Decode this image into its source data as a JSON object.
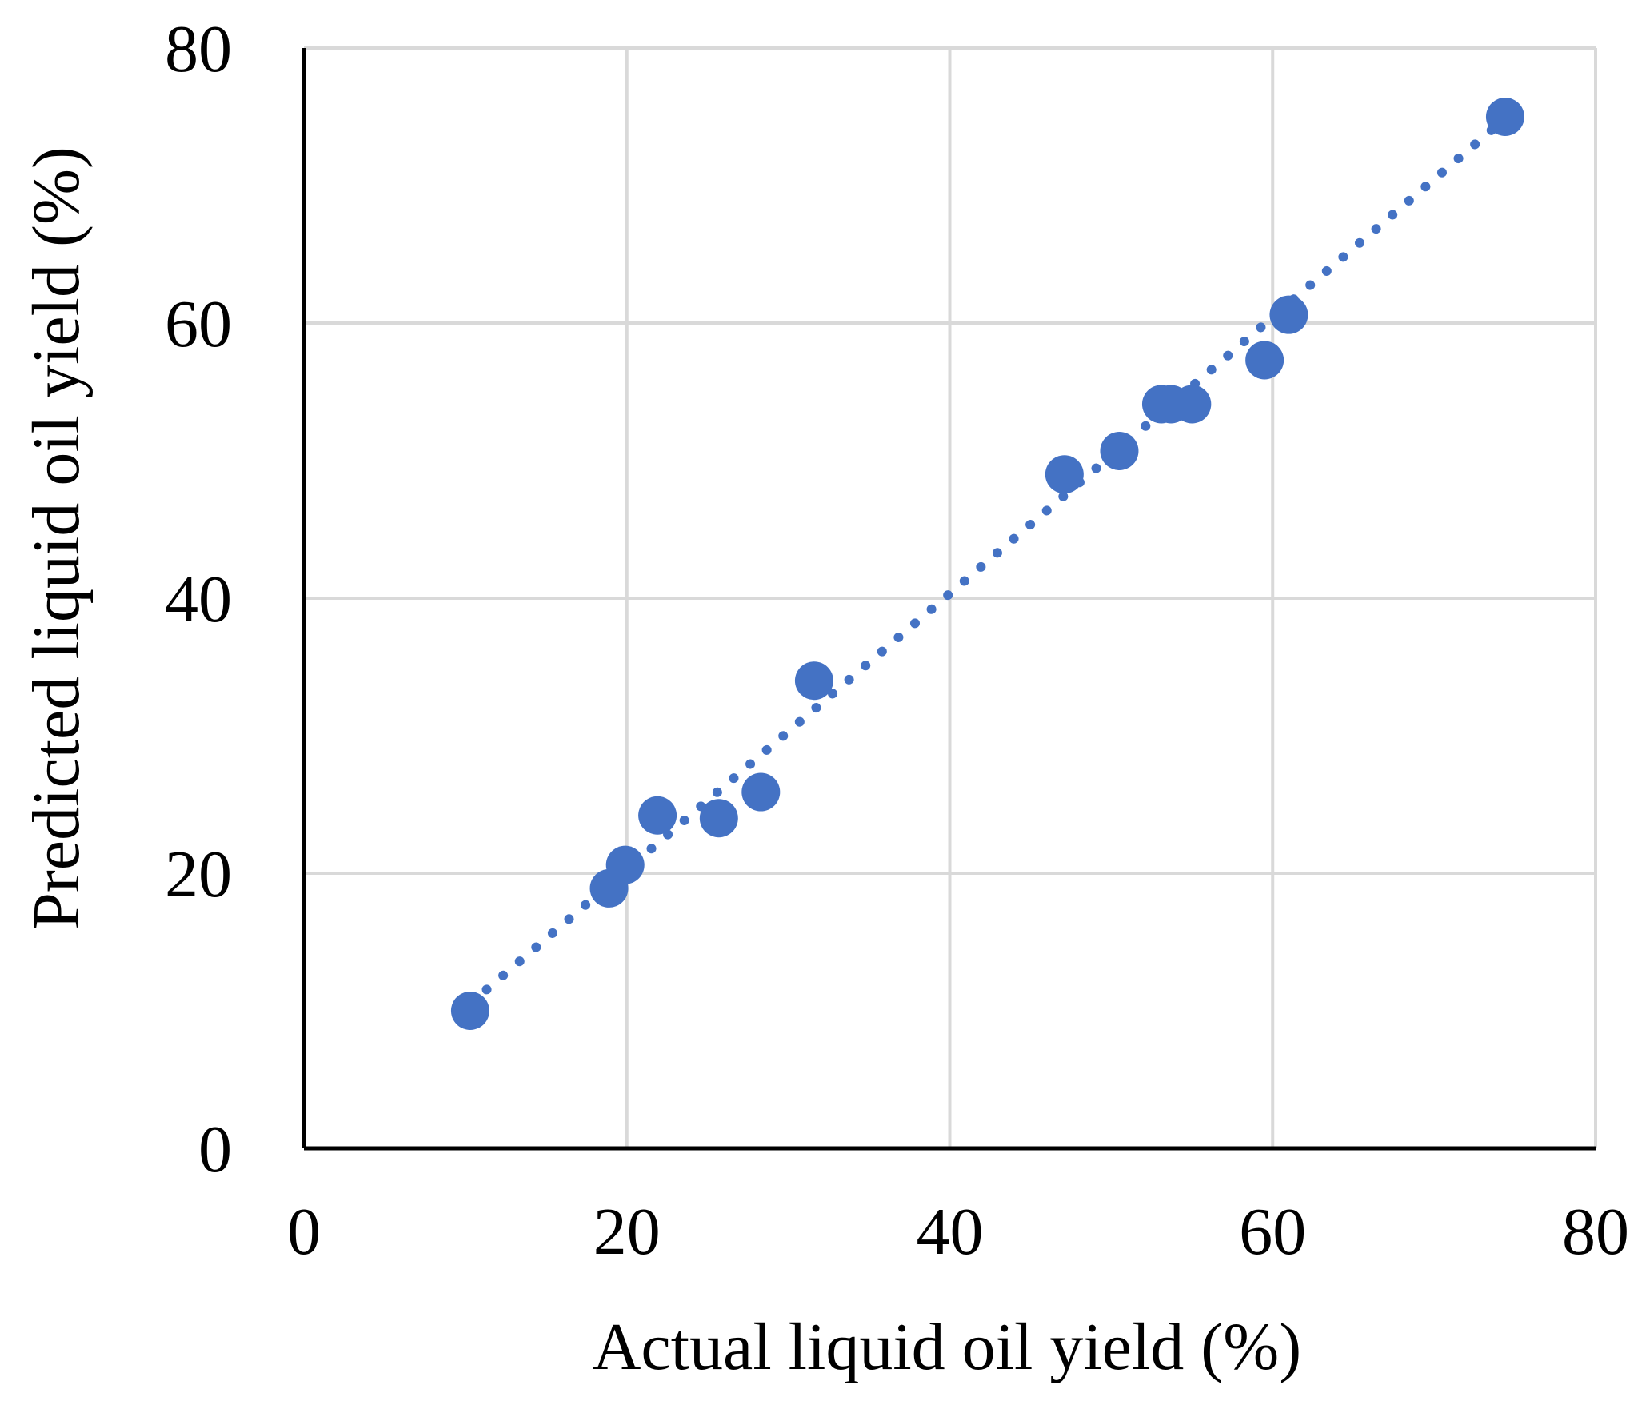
{
  "chart_data": {
    "type": "scatter",
    "title": "",
    "xlabel": "Actual liquid oil yield (%)",
    "ylabel": "Predicted liquid oil yield (%)",
    "xlim": [
      0,
      80
    ],
    "ylim": [
      0,
      80
    ],
    "xticks": [
      "0",
      "20",
      "40",
      "60",
      "80"
    ],
    "yticks": [
      "0",
      "20",
      "40",
      "60",
      "80"
    ],
    "grid": true,
    "legend": "none",
    "series": [
      {
        "points": [
          {
            "x": 10.3,
            "y": 10.0
          },
          {
            "x": 18.9,
            "y": 18.9
          },
          {
            "x": 19.9,
            "y": 20.6
          },
          {
            "x": 21.9,
            "y": 24.2
          },
          {
            "x": 25.7,
            "y": 24.0
          },
          {
            "x": 28.3,
            "y": 25.9
          },
          {
            "x": 31.6,
            "y": 34.0
          },
          {
            "x": 47.1,
            "y": 49.0
          },
          {
            "x": 50.5,
            "y": 50.7
          },
          {
            "x": 53.1,
            "y": 54.1
          },
          {
            "x": 53.7,
            "y": 54.1
          },
          {
            "x": 55.0,
            "y": 54.1
          },
          {
            "x": 59.5,
            "y": 57.3
          },
          {
            "x": 61.0,
            "y": 60.6
          },
          {
            "x": 74.4,
            "y": 75.0
          }
        ]
      }
    ],
    "trendline": {
      "style": "dotted",
      "x_start": 10.3,
      "x_end": 74.4,
      "slope": 1.004,
      "intercept": 0.18
    },
    "colors": {
      "marker": "#4472C4",
      "grid": "#D9D9D9",
      "axis": "#000000"
    }
  }
}
